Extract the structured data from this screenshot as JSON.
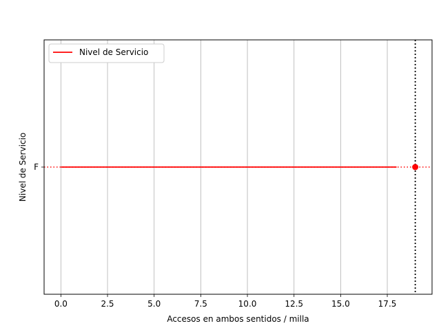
{
  "chart_data": {
    "type": "line",
    "xlabel": "Accesos en ambos sentidos / milla",
    "ylabel": "Nivel de Servicio",
    "xlim": [
      -0.9,
      19.9
    ],
    "x_ticks": [
      0.0,
      2.5,
      5.0,
      7.5,
      10.0,
      12.5,
      15.0,
      17.5
    ],
    "x_tick_labels": [
      "0.0",
      "2.5",
      "5.0",
      "7.5",
      "10.0",
      "12.5",
      "15.0",
      "17.5"
    ],
    "y_categories": [
      "F"
    ],
    "grid": "vertical",
    "legend_position": "top-left",
    "series": [
      {
        "name": "Nivel de Servicio",
        "color": "#ff0000",
        "x": [
          0,
          18
        ],
        "y": [
          "F",
          "F"
        ]
      }
    ],
    "marker_point": {
      "x": 19,
      "y": "F",
      "color": "#ff0000"
    },
    "vertical_reference_x": 19,
    "horizontal_reference_y": "F"
  }
}
